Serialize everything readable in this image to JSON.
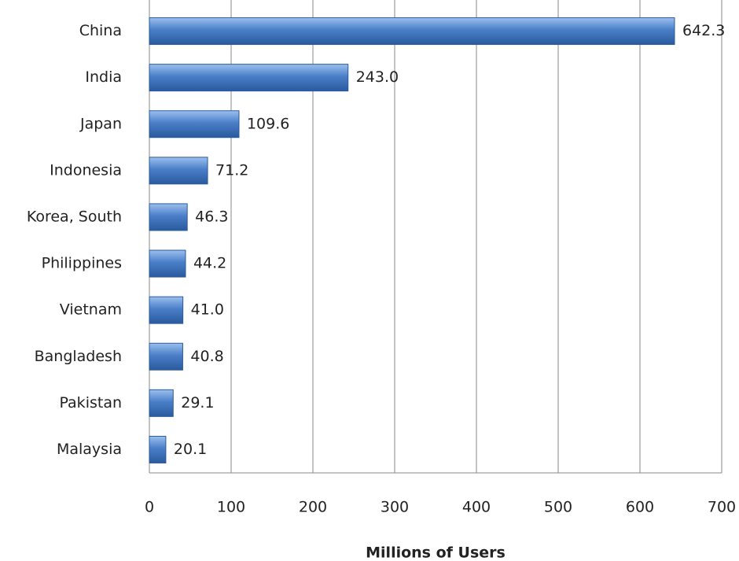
{
  "chart_data": {
    "type": "bar",
    "orientation": "horizontal",
    "x_label": "Millions of Users",
    "categories": [
      "China",
      "India",
      "Japan",
      "Indonesia",
      "Korea, South",
      "Philippines",
      "Vietnam",
      "Bangladesh",
      "Pakistan",
      "Malaysia"
    ],
    "values": [
      642.3,
      243,
      109.6,
      71.2,
      46.3,
      44.2,
      41,
      40.8,
      29.1,
      20.1
    ],
    "value_labels": [
      "642.3",
      "243.0",
      "109.6",
      "71.2",
      "46.3",
      "44.2",
      "41.0",
      "40.8",
      "29.1",
      "20.1"
    ],
    "color": "#4a7fc8",
    "xlim": [
      0,
      700
    ],
    "xticks": [
      0,
      100,
      200,
      300,
      400,
      500,
      600,
      700
    ],
    "grid": true
  }
}
